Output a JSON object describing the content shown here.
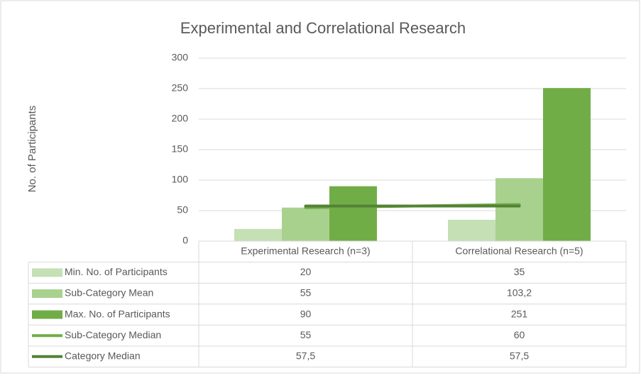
{
  "chart_data": {
    "type": "bar",
    "title": "Experimental and Correlational Research",
    "y_label": "No. of Participants",
    "categories": [
      "Experimental Research (n=3)",
      "Correlational Research (n=5)"
    ],
    "series": [
      {
        "name": "Min. No. of Participants",
        "color": "#c5e0b4",
        "values": [
          20,
          35
        ]
      },
      {
        "name": "Sub-Category Mean",
        "color": "#a9d18e",
        "values": [
          55,
          103.2
        ],
        "value_labels": [
          "55",
          "103,2"
        ]
      },
      {
        "name": "Max. No. of Participants",
        "color": "#70ad47",
        "values": [
          90,
          251
        ]
      },
      {
        "name": "Sub-Category Median",
        "color": "#70ad47",
        "type": "line",
        "values": [
          55,
          60
        ]
      },
      {
        "name": "Category Median",
        "color": "#548235",
        "type": "line",
        "values": [
          57.5,
          57.5
        ],
        "value_labels": [
          "57,5",
          "57,5"
        ]
      }
    ],
    "ylim": [
      0,
      300
    ],
    "yticks": [
      0,
      50,
      100,
      150,
      200,
      250,
      300
    ],
    "grid": true
  }
}
